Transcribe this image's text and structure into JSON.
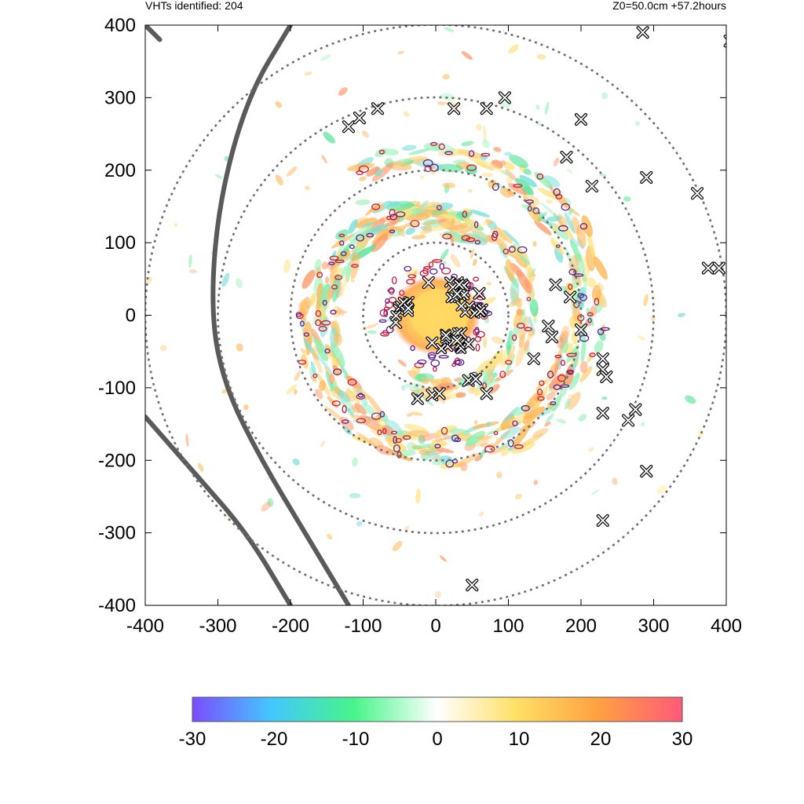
{
  "header": {
    "left_text": "VHTs identified: 204",
    "right_text": "Z0=50.0cm  +57.2hours"
  },
  "chart_data": {
    "type": "scatter",
    "title": "",
    "xlabel": "",
    "ylabel": "",
    "xlim": [
      -400,
      400
    ],
    "ylim": [
      -400,
      400
    ],
    "xticks": [
      -400,
      -300,
      -200,
      -100,
      0,
      100,
      200,
      300,
      400
    ],
    "yticks": [
      -400,
      -300,
      -200,
      -100,
      0,
      100,
      200,
      300,
      400
    ],
    "xtick_labels": [
      "-400",
      "-300",
      "-200",
      "-100",
      "0",
      "100",
      "200",
      "300",
      "400"
    ],
    "ytick_labels": [
      "-400",
      "-300",
      "-200",
      "-100",
      "0",
      "100",
      "200",
      "300",
      "400"
    ],
    "range_rings": [
      100,
      200,
      300,
      400
    ],
    "vht_count": 204,
    "vht_markers": [
      {
        "x": -120,
        "y": 260
      },
      {
        "x": -105,
        "y": 272
      },
      {
        "x": -80,
        "y": 285
      },
      {
        "x": 25,
        "y": 285
      },
      {
        "x": 70,
        "y": 285
      },
      {
        "x": 95,
        "y": 300
      },
      {
        "x": 200,
        "y": 270
      },
      {
        "x": 180,
        "y": 218
      },
      {
        "x": 215,
        "y": 178
      },
      {
        "x": 290,
        "y": 190
      },
      {
        "x": 360,
        "y": 168
      },
      {
        "x": 375,
        "y": 65
      },
      {
        "x": 390,
        "y": 65
      },
      {
        "x": 405,
        "y": 378
      },
      {
        "x": 285,
        "y": 390
      },
      {
        "x": -10,
        "y": 45
      },
      {
        "x": 30,
        "y": 45
      },
      {
        "x": 60,
        "y": 30
      },
      {
        "x": -50,
        "y": 10
      },
      {
        "x": -55,
        "y": -10
      },
      {
        "x": -5,
        "y": -38
      },
      {
        "x": 35,
        "y": -25
      },
      {
        "x": 45,
        "y": -40
      },
      {
        "x": 165,
        "y": 42
      },
      {
        "x": 185,
        "y": 25
      },
      {
        "x": 155,
        "y": -15
      },
      {
        "x": 160,
        "y": -30
      },
      {
        "x": 200,
        "y": -20
      },
      {
        "x": 135,
        "y": -60
      },
      {
        "x": 230,
        "y": -60
      },
      {
        "x": 230,
        "y": -75
      },
      {
        "x": 235,
        "y": -85
      },
      {
        "x": 45,
        "y": -90
      },
      {
        "x": 55,
        "y": -88
      },
      {
        "x": 70,
        "y": -108
      },
      {
        "x": -25,
        "y": -115
      },
      {
        "x": -5,
        "y": -110
      },
      {
        "x": 5,
        "y": -108
      },
      {
        "x": 230,
        "y": -135
      },
      {
        "x": 265,
        "y": -145
      },
      {
        "x": 275,
        "y": -130
      },
      {
        "x": 290,
        "y": -215
      },
      {
        "x": 230,
        "y": -283
      },
      {
        "x": 50,
        "y": -372
      }
    ],
    "vht_clusters": [
      {
        "x": 25,
        "y": 35,
        "count": 14
      },
      {
        "x": 50,
        "y": 10,
        "count": 8
      },
      {
        "x": -45,
        "y": 10,
        "count": 8
      },
      {
        "x": 20,
        "y": -35,
        "count": 14
      }
    ],
    "spiral_contours": [
      {
        "r0": 95,
        "theta0": -110,
        "sweep": 540,
        "growth": 95
      },
      {
        "r0": 120,
        "theta0": 60,
        "sweep": 420,
        "growth": 90
      }
    ],
    "track_lines": [
      {
        "points": [
          [
            -200,
            400
          ],
          [
            -260,
            300
          ],
          [
            -300,
            150
          ],
          [
            -310,
            0
          ],
          [
            -290,
            -100
          ],
          [
            -240,
            -200
          ],
          [
            -180,
            -300
          ],
          [
            -120,
            -400
          ]
        ]
      },
      {
        "points": [
          [
            -400,
            400
          ],
          [
            -380,
            380
          ]
        ]
      },
      {
        "points": [
          [
            -400,
            -140
          ],
          [
            -330,
            -220
          ],
          [
            -260,
            -300
          ],
          [
            -200,
            -400
          ]
        ]
      }
    ],
    "colorbar": {
      "min": -30,
      "max": 30,
      "ticks": [
        -30,
        -20,
        -10,
        0,
        10,
        20,
        30
      ],
      "tick_labels": [
        "-30",
        "-20",
        "-10",
        "0",
        "10",
        "20",
        "30"
      ],
      "colors": [
        "#7b4cff",
        "#43c7ff",
        "#47f58a",
        "#ffffff",
        "#ffe066",
        "#ffa040",
        "#ff5a7a"
      ]
    }
  }
}
